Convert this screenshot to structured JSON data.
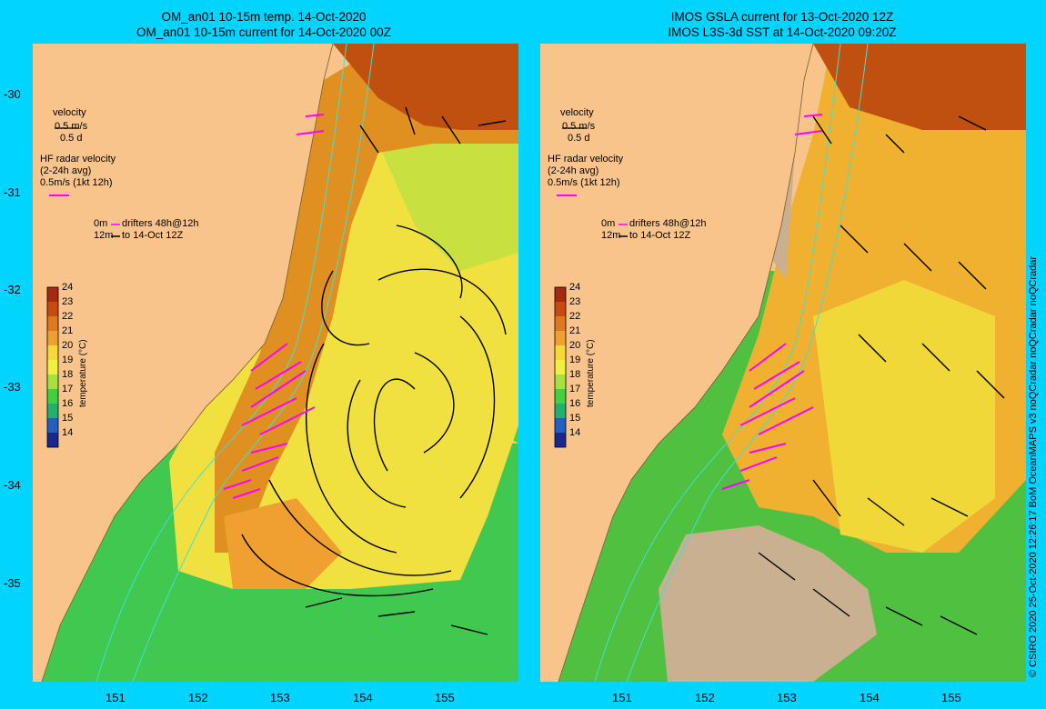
{
  "left_panel": {
    "title_line1": "OM_an01 10-15m temp. 14-Oct-2020",
    "title_line2": "OM_an01 10-15m current for 14-Oct-2020 00Z"
  },
  "right_panel": {
    "title_line1": "IMOS GSLA current for 13-Oct-2020 12Z",
    "title_line2": "IMOS L3S-3d SST at 14-Oct-2020 09:20Z"
  },
  "legend": {
    "velocity_label": "velocity",
    "velocity_scale": "0.5 m/s",
    "velocity_days": "0.5 d",
    "hf_label": "HF radar velocity",
    "hf_avg": "(2-24h avg)",
    "hf_scale": "0.5m/s (1kt 12h)",
    "drifters_0m": "0m",
    "drifters_text": "drifters 48h@12h",
    "drifters_12m": "12m",
    "drifters_to": "to 14-Oct 12Z"
  },
  "colorbar": {
    "title": "temperature (°C)",
    "ticks": [
      "24",
      "23",
      "22",
      "21",
      "20",
      "19",
      "18",
      "17",
      "16",
      "15",
      "14"
    ],
    "colors": [
      "#a52a10",
      "#c84a10",
      "#e07820",
      "#f0a030",
      "#f8d838",
      "#f0f040",
      "#a8e040",
      "#40d040",
      "#20b070",
      "#2060c0",
      "#182890"
    ]
  },
  "axes": {
    "lat_ticks": [
      "-30",
      "-31",
      "-32",
      "-33",
      "-34",
      "-35"
    ],
    "lon_ticks": [
      "151",
      "152",
      "153",
      "154",
      "155"
    ]
  },
  "credit": "© CSIRO 2020  25-Oct-2020 12:26:17 BoM OceanMAPS v3 noQCradar noQCradar noQCradar",
  "colors": {
    "background": "#00d4ff",
    "land": "#f9c48c",
    "hf_radar": "#ff00ff",
    "isobath": "#40e0d0"
  }
}
